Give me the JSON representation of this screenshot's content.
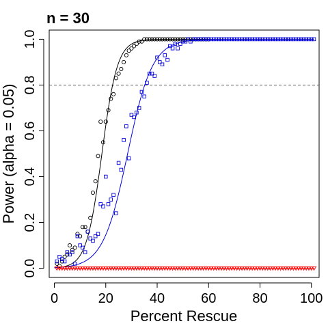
{
  "chart_data": {
    "type": "scatter",
    "title": "n = 30",
    "xlabel": "Percent Rescue",
    "ylabel": "Power (alpha = 0.05)",
    "xlim": [
      -2,
      103
    ],
    "ylim": [
      -0.04,
      1.04
    ],
    "x_ticks": [
      0,
      20,
      40,
      60,
      80,
      100
    ],
    "x_tick_labels": [
      "0",
      "20",
      "40",
      "60",
      "80",
      "100"
    ],
    "y_ticks": [
      0.0,
      0.2,
      0.4,
      0.6,
      0.8,
      1.0
    ],
    "y_tick_labels": [
      "0.0",
      "0.2",
      "0.4",
      "0.6",
      "0.8",
      "1.0"
    ],
    "reference_line": {
      "y": 0.8,
      "style": "dashed",
      "color": "#555555"
    },
    "grid": false,
    "series": [
      {
        "color": "#000000",
        "marker": "circle",
        "fit": {
          "type": "logistic",
          "midpoint": 18.5,
          "scale": 3.0
        },
        "points": [
          [
            1,
            0.02
          ],
          [
            2,
            0.01
          ],
          [
            3,
            0.03
          ],
          [
            4,
            0.05
          ],
          [
            5,
            0.06
          ],
          [
            6,
            0.1
          ],
          [
            7,
            0.08
          ],
          [
            8,
            0.09
          ],
          [
            9,
            0.15
          ],
          [
            10,
            0.14
          ],
          [
            11,
            0.18
          ],
          [
            12,
            0.18
          ],
          [
            13,
            0.16
          ],
          [
            14,
            0.22
          ],
          [
            15,
            0.33
          ],
          [
            16,
            0.38
          ],
          [
            17,
            0.49
          ],
          [
            18,
            0.64
          ],
          [
            19,
            0.55
          ],
          [
            20,
            0.64
          ],
          [
            21,
            0.69
          ],
          [
            22,
            0.74
          ],
          [
            23,
            0.76
          ],
          [
            24,
            0.83
          ],
          [
            25,
            0.85
          ],
          [
            26,
            0.87
          ],
          [
            27,
            0.9
          ],
          [
            28,
            0.93
          ],
          [
            29,
            0.95
          ],
          [
            30,
            0.96
          ],
          [
            31,
            0.97
          ],
          [
            32,
            0.98
          ],
          [
            33,
            0.99
          ],
          [
            34,
            0.99
          ],
          [
            35,
            1.0
          ],
          [
            36,
            1.0
          ],
          [
            37,
            1.0
          ],
          [
            38,
            1.0
          ],
          [
            39,
            1.0
          ],
          [
            40,
            1.0
          ],
          [
            41,
            1.0
          ],
          [
            42,
            1.0
          ],
          [
            43,
            1.0
          ],
          [
            44,
            1.0
          ],
          [
            45,
            1.0
          ],
          [
            46,
            1.0
          ],
          [
            47,
            1.0
          ],
          [
            48,
            1.0
          ],
          [
            49,
            1.0
          ],
          [
            50,
            1.0
          ],
          [
            51,
            1.0
          ],
          [
            52,
            1.0
          ],
          [
            53,
            1.0
          ],
          [
            54,
            1.0
          ],
          [
            55,
            1.0
          ],
          [
            56,
            1.0
          ],
          [
            57,
            1.0
          ],
          [
            58,
            1.0
          ],
          [
            59,
            1.0
          ],
          [
            60,
            1.0
          ]
        ]
      },
      {
        "color": "#0000dd",
        "marker": "square",
        "fit": {
          "type": "logistic",
          "midpoint": 28.5,
          "scale": 4.8
        },
        "points": [
          [
            1,
            0.03
          ],
          [
            2,
            0.05
          ],
          [
            3,
            0.04
          ],
          [
            4,
            0.03
          ],
          [
            5,
            0.07
          ],
          [
            6,
            0.06
          ],
          [
            7,
            0.07
          ],
          [
            8,
            0.02
          ],
          [
            9,
            0.14
          ],
          [
            10,
            0.1
          ],
          [
            11,
            0.09
          ],
          [
            12,
            0.07
          ],
          [
            13,
            0.16
          ],
          [
            14,
            0.13
          ],
          [
            15,
            0.12
          ],
          [
            16,
            0.14
          ],
          [
            17,
            0.15
          ],
          [
            18,
            0.28
          ],
          [
            19,
            0.27
          ],
          [
            20,
            0.4
          ],
          [
            21,
            0.28
          ],
          [
            22,
            0.3
          ],
          [
            23,
            0.32
          ],
          [
            24,
            0.24
          ],
          [
            25,
            0.46
          ],
          [
            26,
            0.43
          ],
          [
            27,
            0.56
          ],
          [
            28,
            0.62
          ],
          [
            29,
            0.48
          ],
          [
            30,
            0.67
          ],
          [
            31,
            0.66
          ],
          [
            32,
            0.68
          ],
          [
            33,
            0.7
          ],
          [
            34,
            0.77
          ],
          [
            35,
            0.75
          ],
          [
            36,
            0.81
          ],
          [
            37,
            0.85
          ],
          [
            38,
            0.85
          ],
          [
            39,
            0.84
          ],
          [
            40,
            0.92
          ],
          [
            41,
            0.9
          ],
          [
            42,
            0.89
          ],
          [
            43,
            0.93
          ],
          [
            44,
            0.91
          ],
          [
            45,
            0.97
          ],
          [
            46,
            0.96
          ],
          [
            47,
            0.98
          ],
          [
            48,
            0.96
          ],
          [
            49,
            0.98
          ],
          [
            50,
            0.99
          ],
          [
            51,
            0.99
          ],
          [
            52,
            1.0
          ],
          [
            53,
            0.99
          ],
          [
            54,
            1.0
          ],
          [
            55,
            1.0
          ],
          [
            56,
            1.0
          ],
          [
            57,
            1.0
          ],
          [
            58,
            1.0
          ],
          [
            59,
            1.0
          ],
          [
            60,
            1.0
          ],
          [
            61,
            1.0
          ],
          [
            62,
            1.0
          ],
          [
            63,
            1.0
          ],
          [
            64,
            1.0
          ],
          [
            65,
            1.0
          ],
          [
            66,
            1.0
          ],
          [
            67,
            1.0
          ],
          [
            68,
            1.0
          ],
          [
            69,
            1.0
          ],
          [
            70,
            1.0
          ],
          [
            71,
            1.0
          ],
          [
            72,
            1.0
          ],
          [
            73,
            1.0
          ],
          [
            74,
            1.0
          ],
          [
            75,
            1.0
          ],
          [
            76,
            1.0
          ],
          [
            77,
            1.0
          ],
          [
            78,
            1.0
          ],
          [
            79,
            1.0
          ],
          [
            80,
            1.0
          ],
          [
            81,
            1.0
          ],
          [
            82,
            1.0
          ],
          [
            83,
            1.0
          ],
          [
            84,
            1.0
          ],
          [
            85,
            1.0
          ],
          [
            86,
            1.0
          ],
          [
            87,
            1.0
          ],
          [
            88,
            1.0
          ],
          [
            89,
            1.0
          ],
          [
            90,
            1.0
          ],
          [
            91,
            1.0
          ],
          [
            92,
            1.0
          ],
          [
            93,
            1.0
          ],
          [
            94,
            1.0
          ],
          [
            95,
            1.0
          ],
          [
            96,
            1.0
          ],
          [
            97,
            1.0
          ],
          [
            98,
            1.0
          ],
          [
            99,
            1.0
          ],
          [
            100,
            1.0
          ],
          [
            101,
            1.0
          ]
        ]
      },
      {
        "color": "#ff0000",
        "marker": "triangle-down",
        "fit": {
          "type": "constant",
          "value": 0.0
        },
        "x_range": [
          1,
          101
        ],
        "x_step": 1,
        "y_value": 0.0
      }
    ]
  }
}
